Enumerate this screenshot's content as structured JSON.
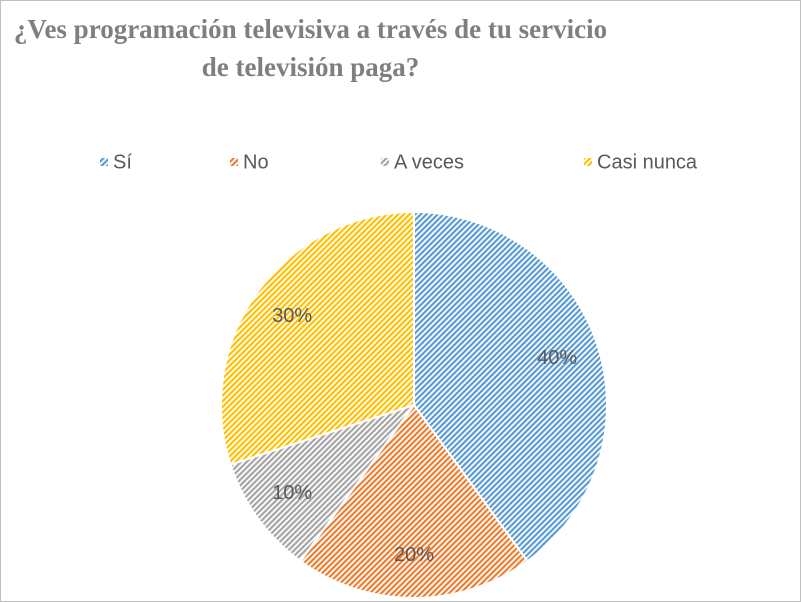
{
  "chart_data": {
    "type": "pie",
    "title": "¿Ves programación televisiva a través de tu servicio de televisión paga?",
    "categories": [
      "Sí",
      "No",
      "A veces",
      "Casi nunca"
    ],
    "values": [
      40,
      20,
      10,
      30
    ],
    "value_labels": [
      "40%",
      "20%",
      "10%",
      "30%"
    ],
    "colors": [
      "#5b9bd5",
      "#ed7d31",
      "#a5a5a5",
      "#ffc000"
    ],
    "legend": "top"
  }
}
